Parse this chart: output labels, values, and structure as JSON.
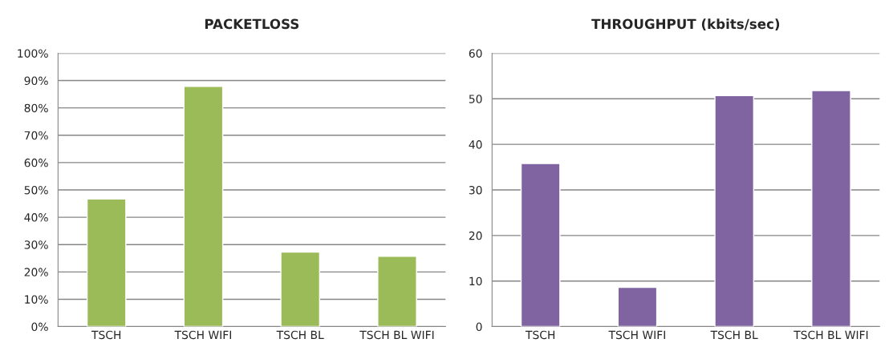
{
  "chart_data": [
    {
      "type": "bar",
      "title": "PACKETLOSS",
      "categories": [
        "TSCH",
        "TSCH WIFI",
        "TSCH BL",
        "TSCH BL WIFI"
      ],
      "values": [
        46.7,
        87.9,
        27.3,
        25.7
      ],
      "color": "#9bbb59",
      "ylim": [
        0,
        100
      ],
      "yticks": [
        {
          "value": 0,
          "label": "0%"
        },
        {
          "value": 10,
          "label": "10%"
        },
        {
          "value": 20,
          "label": "20%"
        },
        {
          "value": 30,
          "label": "30%"
        },
        {
          "value": 40,
          "label": "40%"
        },
        {
          "value": 50,
          "label": "50%"
        },
        {
          "value": 60,
          "label": "60%"
        },
        {
          "value": 70,
          "label": "70%"
        },
        {
          "value": 80,
          "label": "80%"
        },
        {
          "value": 90,
          "label": "90%"
        },
        {
          "value": 100,
          "label": "100%"
        }
      ],
      "grid": "y"
    },
    {
      "type": "bar",
      "title": "THROUGHPUT (kbits/sec)",
      "categories": [
        "TSCH",
        "TSCH WIFI",
        "TSCH BL",
        "TSCH BL WIFI"
      ],
      "values": [
        35.8,
        8.6,
        50.7,
        51.8
      ],
      "color": "#8064a2",
      "ylim": [
        0,
        60
      ],
      "yticks": [
        0,
        10,
        20,
        30,
        40,
        50,
        60
      ],
      "grid": "y"
    }
  ]
}
